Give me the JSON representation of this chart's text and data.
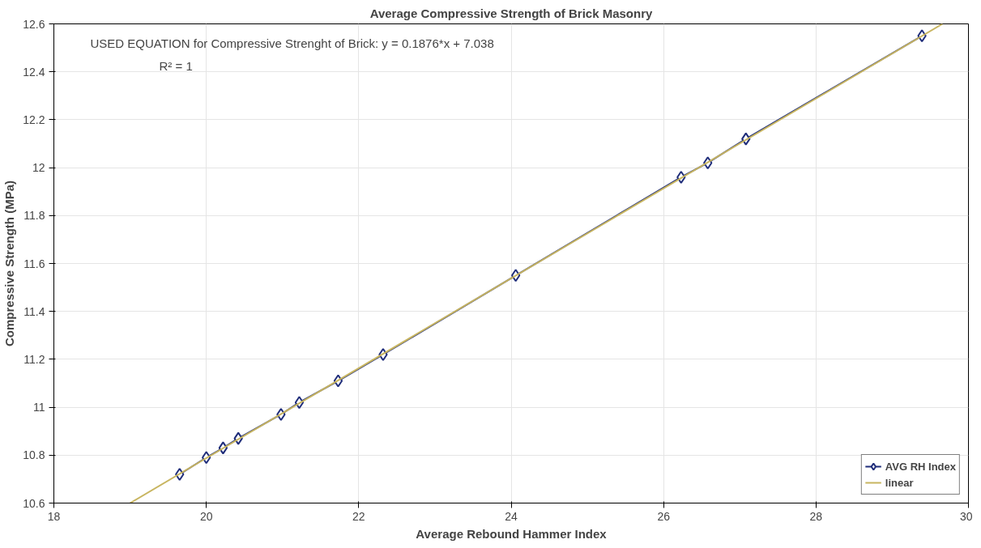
{
  "chart_data": {
    "type": "line",
    "title": "Average Compressive Strength of Brick Masonry",
    "xlabel": "Average Rebound Hammer Index",
    "ylabel": "Compressive Strength (MPa)",
    "annotations": [
      "USED EQUATION for Compressive Strenght of Brick:  y = 0.1876*x + 7.038",
      "R² = 1"
    ],
    "series": [
      {
        "name": "AVG RH Index",
        "color": "#1f2d7a",
        "marker": "diamond",
        "x": [
          19.65,
          20.0,
          20.22,
          20.42,
          20.98,
          21.22,
          21.73,
          22.32,
          24.06,
          26.23,
          26.58,
          27.08,
          29.39
        ],
        "values": [
          10.72,
          10.79,
          10.83,
          10.87,
          10.97,
          11.02,
          11.11,
          11.22,
          11.55,
          11.96,
          12.02,
          12.12,
          12.55
        ]
      },
      {
        "name": "linear",
        "color": "#c8b560",
        "marker": "none",
        "x": [
          19.0,
          29.66
        ],
        "values": [
          10.6,
          12.6
        ]
      }
    ],
    "xlim": [
      18,
      30
    ],
    "xticks": [
      18,
      20,
      22,
      24,
      26,
      28,
      30
    ],
    "ylim": [
      10.6,
      12.6
    ],
    "yticks": [
      10.6,
      10.8,
      11,
      11.2,
      11.4,
      11.6,
      11.8,
      12,
      12.2,
      12.4,
      12.6
    ],
    "grid": true,
    "legend": "bottom right"
  }
}
